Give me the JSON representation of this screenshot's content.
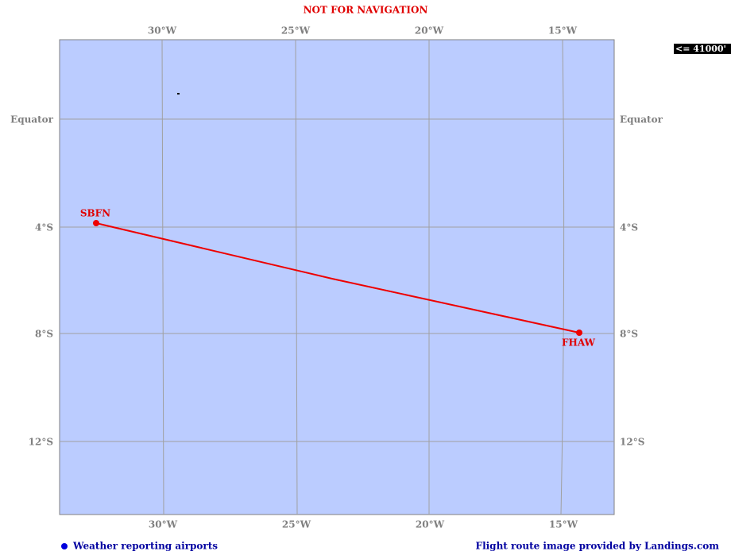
{
  "header": {
    "title": "NOT FOR NAVIGATION",
    "altitude": "<= 41000'"
  },
  "map": {
    "top_labels": [
      "30°W",
      "25°W",
      "20°W",
      "15°W"
    ],
    "bottom_labels": [
      "30°W",
      "25°W",
      "20°W",
      "15°W"
    ],
    "left_labels": [
      "Equator",
      "4°S",
      "8°S",
      "12°S"
    ],
    "right_labels": [
      "Equator",
      "4°S",
      "8°S",
      "12°S"
    ],
    "airports": [
      {
        "code": "SBFN"
      },
      {
        "code": "FHAW"
      }
    ]
  },
  "footer": {
    "legend": "Weather reporting airports",
    "credit": "Flight route image provided by Landings.com"
  }
}
